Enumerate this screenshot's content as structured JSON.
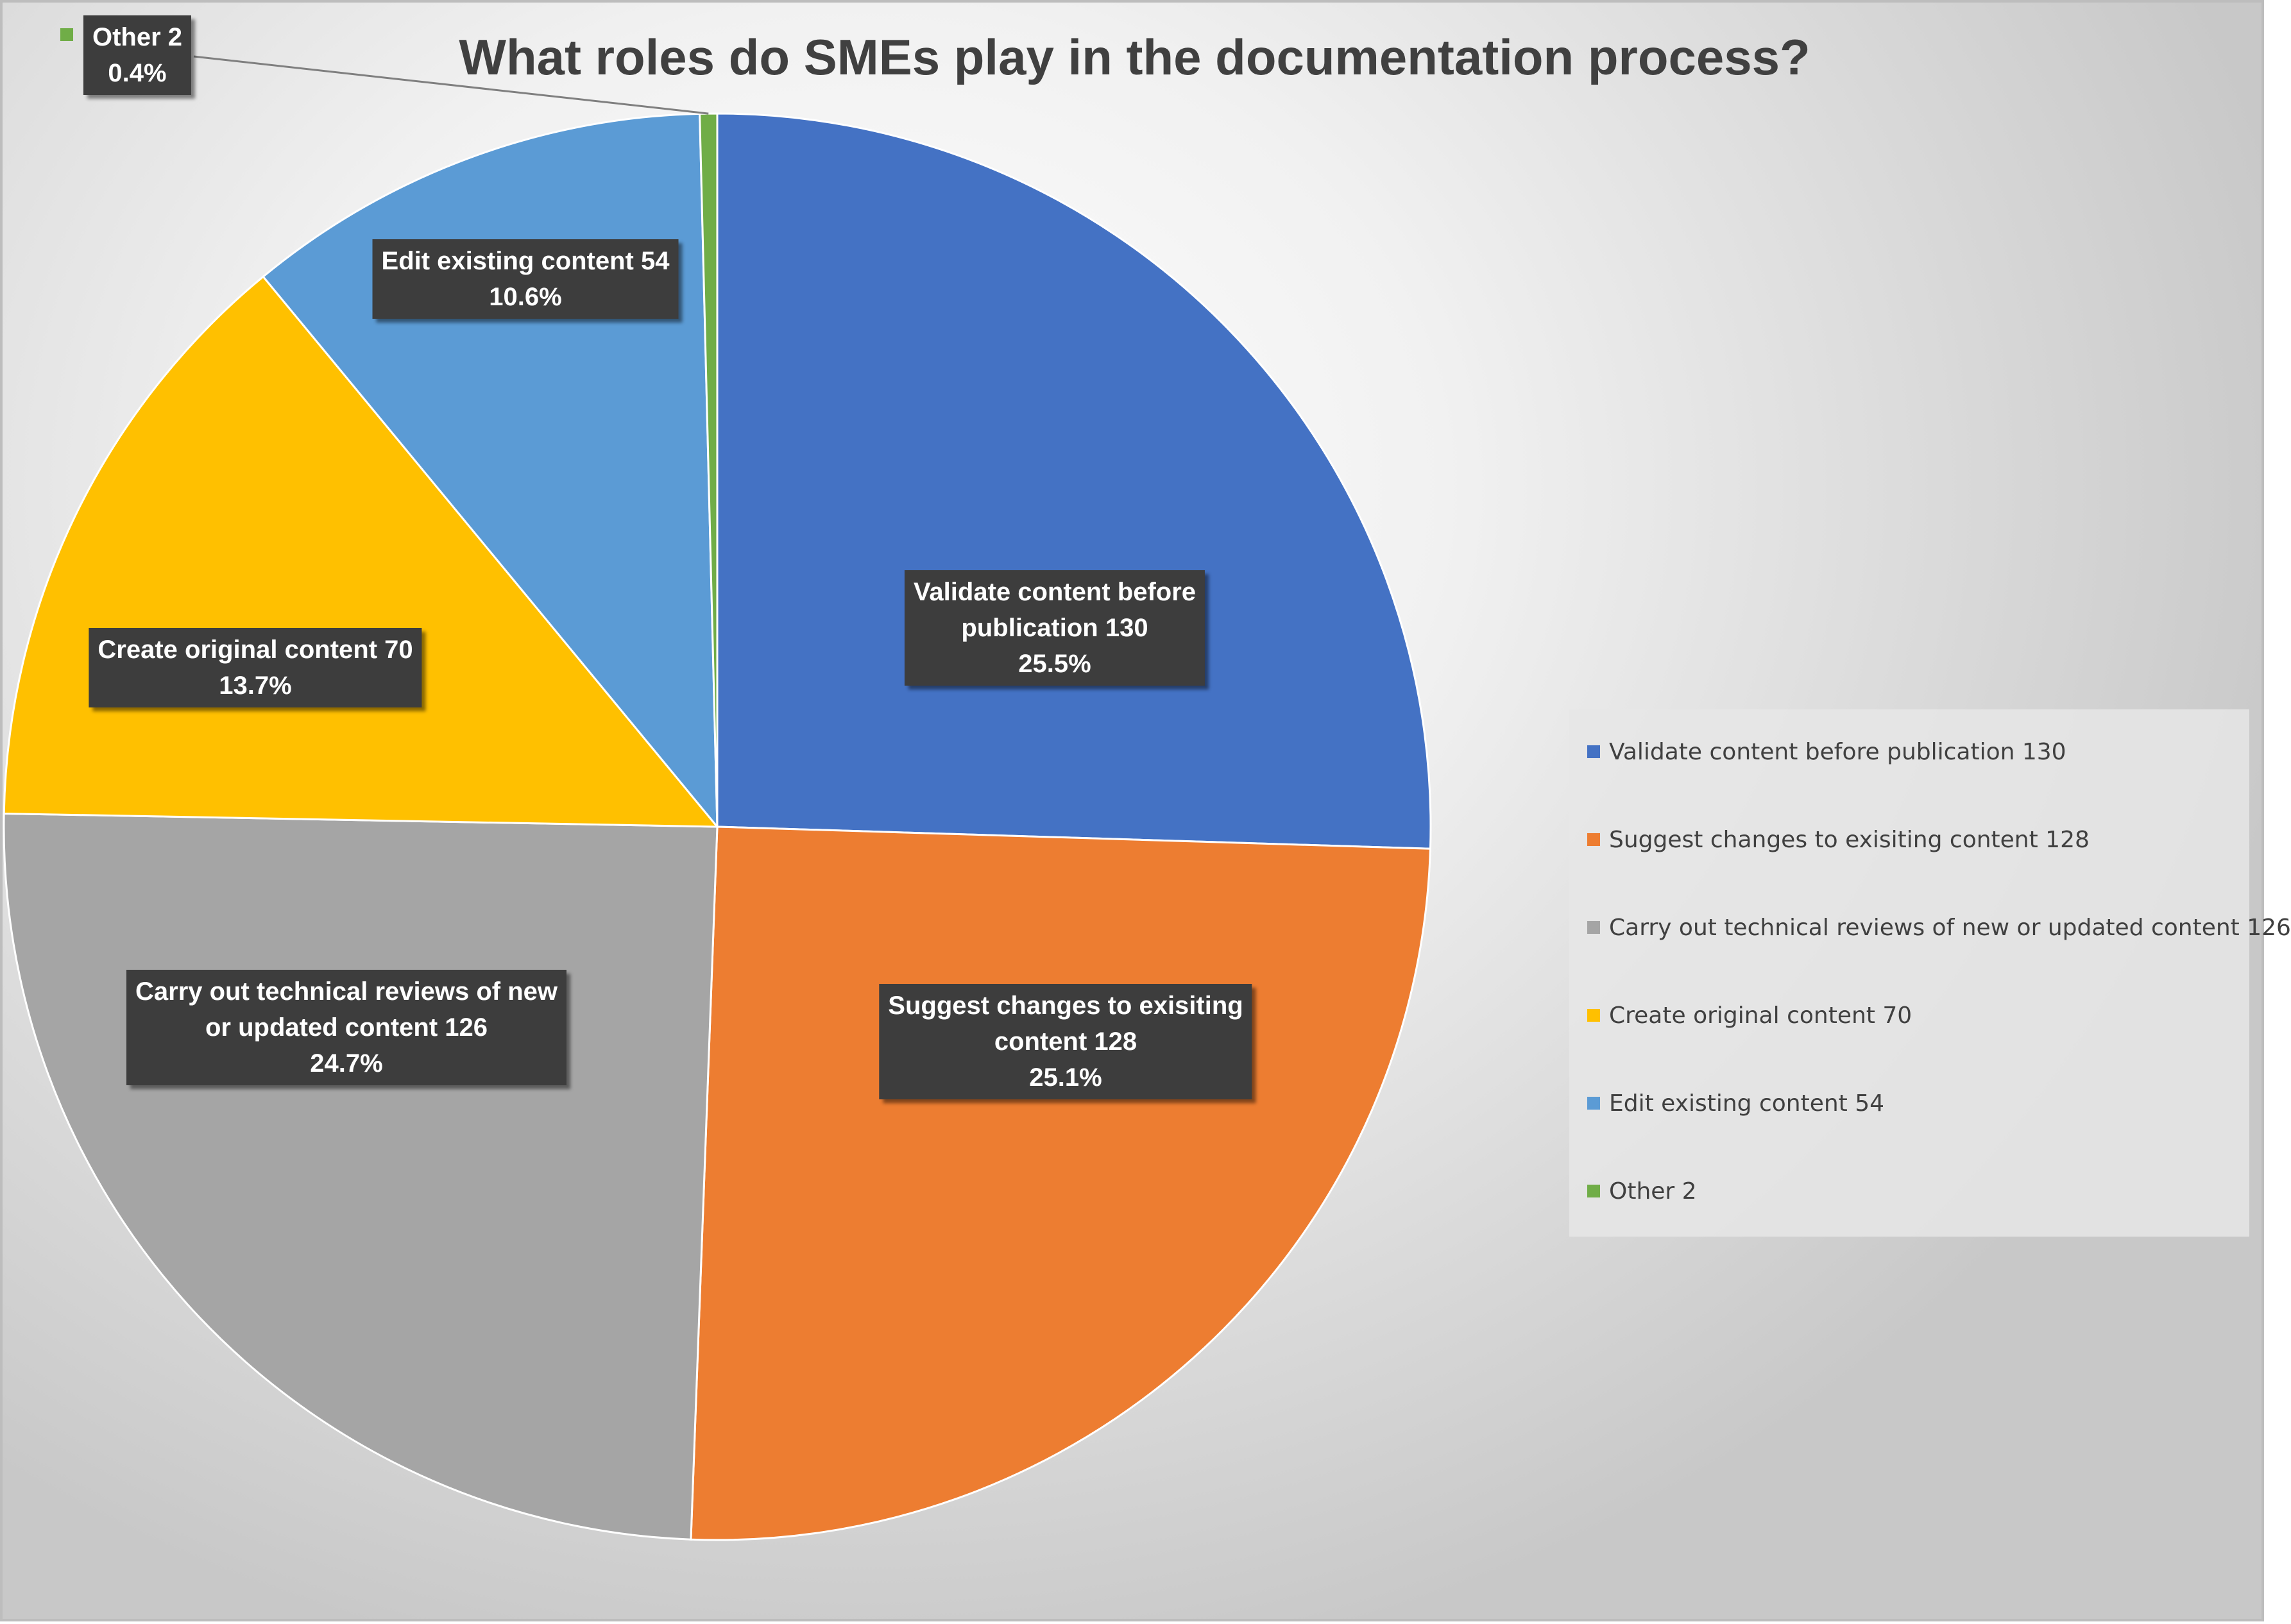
{
  "chart_data": {
    "type": "pie",
    "title": "What roles do SMEs play in the documentation process?",
    "start_angle_deg": 0,
    "direction": "clockwise",
    "slices": [
      {
        "name": "Validate content before publication 130",
        "label_lines": [
          "Validate content before",
          "publication 130",
          "25.5%"
        ],
        "value": 130,
        "percent": "25.5%",
        "color": "#4472C4"
      },
      {
        "name": "Suggest changes to exisiting content 128",
        "label_lines": [
          "Suggest changes to exisiting",
          "content 128",
          "25.1%"
        ],
        "value": 128,
        "percent": "25.1%",
        "color": "#ED7D31"
      },
      {
        "name": "Carry out technical reviews of new or updated content 126",
        "label_lines": [
          "Carry out technical reviews of new",
          "or updated content 126",
          "24.7%"
        ],
        "value": 126,
        "percent": "24.7%",
        "color": "#A5A5A5"
      },
      {
        "name": "Create original content 70",
        "label_lines": [
          "Create original content 70",
          "13.7%"
        ],
        "value": 70,
        "percent": "13.7%",
        "color": "#FFC000"
      },
      {
        "name": "Edit existing content 54",
        "label_lines": [
          "Edit existing content 54",
          "10.6%"
        ],
        "value": 54,
        "percent": "10.6%",
        "color": "#5B9BD5"
      },
      {
        "name": "Other 2",
        "label_lines": [
          "Other 2",
          "0.4%"
        ],
        "value": 2,
        "percent": "0.4%",
        "color": "#70AD47"
      }
    ],
    "legend": {
      "position": "right",
      "items": [
        "Validate content before publication 130",
        "Suggest changes to exisiting content 128",
        "Carry out technical reviews of new or updated content 126",
        "Create original content 70",
        "Edit existing content 54",
        "Other 2"
      ]
    }
  }
}
